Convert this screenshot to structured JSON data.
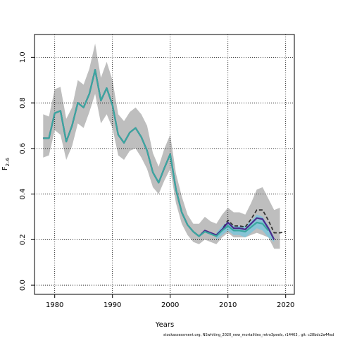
{
  "chart_data": {
    "type": "line",
    "xlabel": "Years",
    "ylabel": "F",
    "ylabel_sub": "2–6",
    "xlim": [
      1976.5,
      2021.5
    ],
    "ylim": [
      -0.04,
      1.1
    ],
    "xticks": [
      1980,
      1990,
      2000,
      2010,
      2020
    ],
    "yticks": [
      0.0,
      0.2,
      0.4,
      0.6,
      0.8,
      1.0
    ],
    "ytick_labels": [
      "0.0",
      "0.2",
      "0.4",
      "0.6",
      "0.8",
      "1.0"
    ],
    "grid": "dotted",
    "footer": "stockassessment.org, NSwhiting_2020_new_mortalities_retro3peels, r14463 , git: c28bdc2a44ad",
    "colors": {
      "ci_band": "#bebebe",
      "ci_band_latest": "#87c4d6",
      "main_line": "#3aa79f",
      "retro_1": "#333333",
      "retro_2": "#4b2a8c"
    },
    "ci_band": {
      "x": [
        1978,
        1979,
        1980,
        1981,
        1982,
        1983,
        1984,
        1985,
        1986,
        1987,
        1988,
        1989,
        1990,
        1991,
        1992,
        1993,
        1994,
        1995,
        1996,
        1997,
        1998,
        1999,
        2000,
        2001,
        2002,
        2003,
        2004,
        2005,
        2006,
        2007,
        2008,
        2009,
        2010,
        2011,
        2012,
        2013,
        2014,
        2015,
        2016,
        2017,
        2018,
        2019
      ],
      "lower": [
        0.56,
        0.57,
        0.68,
        0.66,
        0.55,
        0.61,
        0.71,
        0.69,
        0.76,
        0.84,
        0.71,
        0.75,
        0.69,
        0.57,
        0.55,
        0.59,
        0.6,
        0.56,
        0.51,
        0.43,
        0.4,
        0.46,
        0.51,
        0.36,
        0.27,
        0.22,
        0.19,
        0.18,
        0.2,
        0.19,
        0.18,
        0.21,
        0.23,
        0.21,
        0.21,
        0.21,
        0.22,
        0.23,
        0.22,
        0.21,
        0.16,
        0.16
      ],
      "upper": [
        0.75,
        0.74,
        0.86,
        0.87,
        0.73,
        0.78,
        0.9,
        0.88,
        0.95,
        1.06,
        0.91,
        0.98,
        0.9,
        0.75,
        0.72,
        0.76,
        0.78,
        0.75,
        0.7,
        0.58,
        0.52,
        0.6,
        0.66,
        0.49,
        0.39,
        0.31,
        0.27,
        0.27,
        0.3,
        0.28,
        0.27,
        0.31,
        0.34,
        0.32,
        0.32,
        0.31,
        0.36,
        0.42,
        0.43,
        0.38,
        0.33,
        0.34
      ]
    },
    "ci_band_latest": {
      "x": [
        2008,
        2009,
        2010,
        2011,
        2012,
        2013,
        2014,
        2015,
        2016,
        2017,
        2018
      ],
      "lower": [
        0.2,
        0.22,
        0.24,
        0.22,
        0.22,
        0.21,
        0.23,
        0.25,
        0.24,
        0.21,
        0.19
      ],
      "upper": [
        0.23,
        0.26,
        0.28,
        0.26,
        0.26,
        0.26,
        0.28,
        0.31,
        0.3,
        0.26,
        0.21
      ]
    },
    "series": [
      {
        "x": [
          1978,
          1979,
          1980,
          1981,
          1982,
          1983,
          1984,
          1985,
          1986,
          1987,
          1988,
          1989,
          1990,
          1991,
          1992,
          1993,
          1994,
          1995,
          1996,
          1997,
          1998,
          1999,
          2000,
          2001,
          2002,
          2003,
          2004,
          2005,
          2006,
          2007,
          2008,
          2009,
          2010,
          2011,
          2012,
          2013,
          2014,
          2015,
          2016,
          2017,
          2018,
          2019,
          2020
        ],
        "values": [
          0.645,
          0.645,
          0.755,
          0.765,
          0.63,
          0.7,
          0.8,
          0.78,
          0.84,
          0.945,
          0.81,
          0.865,
          0.79,
          0.66,
          0.625,
          0.67,
          0.69,
          0.65,
          0.59,
          0.495,
          0.45,
          0.515,
          0.575,
          0.42,
          0.32,
          0.265,
          0.235,
          0.215,
          0.24,
          0.23,
          0.22,
          0.245,
          0.285,
          0.26,
          0.26,
          0.255,
          0.29,
          0.33,
          0.33,
          0.285,
          0.23,
          0.23,
          0.235
        ],
        "style": "dashed",
        "color": "#333333"
      },
      {
        "x": [
          1978,
          1979,
          1980,
          1981,
          1982,
          1983,
          1984,
          1985,
          1986,
          1987,
          1988,
          1989,
          1990,
          1991,
          1992,
          1993,
          1994,
          1995,
          1996,
          1997,
          1998,
          1999,
          2000,
          2001,
          2002,
          2003,
          2004,
          2005,
          2006,
          2007,
          2008,
          2009,
          2010,
          2011,
          2012,
          2013,
          2014,
          2015,
          2016,
          2017,
          2018
        ],
        "values": [
          0.645,
          0.645,
          0.755,
          0.765,
          0.63,
          0.7,
          0.8,
          0.78,
          0.84,
          0.945,
          0.81,
          0.865,
          0.79,
          0.66,
          0.625,
          0.67,
          0.69,
          0.65,
          0.59,
          0.495,
          0.45,
          0.515,
          0.575,
          0.42,
          0.32,
          0.265,
          0.235,
          0.215,
          0.24,
          0.23,
          0.22,
          0.245,
          0.275,
          0.25,
          0.25,
          0.245,
          0.27,
          0.295,
          0.29,
          0.25,
          0.2
        ],
        "style": "solid",
        "color": "#4b2a8c"
      },
      {
        "x": [
          1978,
          1979,
          1980,
          1981,
          1982,
          1983,
          1984,
          1985,
          1986,
          1987,
          1988,
          1989,
          1990,
          1991,
          1992,
          1993,
          1994,
          1995,
          1996,
          1997,
          1998,
          1999,
          2000,
          2001,
          2002,
          2003,
          2004,
          2005,
          2006,
          2007,
          2008,
          2009,
          2010,
          2011,
          2012,
          2013,
          2014,
          2015,
          2016,
          2017
        ],
        "values": [
          0.645,
          0.645,
          0.755,
          0.765,
          0.63,
          0.7,
          0.8,
          0.78,
          0.84,
          0.945,
          0.81,
          0.865,
          0.79,
          0.66,
          0.625,
          0.67,
          0.69,
          0.65,
          0.59,
          0.495,
          0.45,
          0.515,
          0.575,
          0.42,
          0.32,
          0.265,
          0.235,
          0.215,
          0.235,
          0.225,
          0.215,
          0.24,
          0.26,
          0.24,
          0.24,
          0.235,
          0.255,
          0.275,
          0.27,
          0.24
        ],
        "style": "solid",
        "color": "#3aa79f"
      }
    ]
  }
}
